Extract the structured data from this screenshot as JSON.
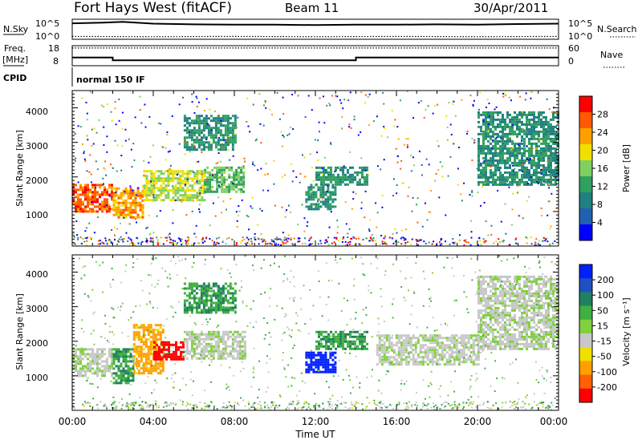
{
  "header": {
    "title": "Fort Hays West (fitACF)",
    "beam": "Beam 11",
    "date": "30/Apr/2011"
  },
  "top_panels": {
    "nsky_label": "N.Sky",
    "nsearch_label": "N.Search",
    "noise_ticks_left": [
      "10^5",
      "10^0"
    ],
    "noise_ticks_right": [
      "10^5",
      "10^0"
    ],
    "freq_label_1": "Freq.",
    "freq_label_2": "[MHz]",
    "freq_ticks": [
      "18",
      "8"
    ],
    "nave_label": "Nave",
    "nave_ticks": [
      "60",
      "0"
    ],
    "cpid_label": "CPID",
    "cpid_value": "normal 150 IF"
  },
  "chart_data": [
    {
      "type": "line",
      "title": "",
      "series": [
        {
          "name": "N.Sky",
          "x": [
            0,
            1.5,
            2.5,
            4,
            6,
            8,
            10,
            12,
            14,
            16,
            18,
            20,
            22,
            24
          ],
          "y": [
            4.3,
            4.5,
            4.7,
            4.2,
            4.0,
            3.9,
            3.9,
            3.8,
            3.9,
            3.9,
            4.0,
            3.9,
            4.1,
            4.2
          ]
        },
        {
          "name": "N.Search",
          "x": [
            0,
            4,
            8,
            12,
            16,
            20,
            24
          ],
          "y": [
            0.6,
            0.5,
            0.6,
            0.5,
            0.6,
            0.5,
            0.6
          ]
        }
      ],
      "xlim": [
        0,
        24
      ]
    },
    {
      "type": "line",
      "series": [
        {
          "name": "Freq.",
          "x": [
            0,
            2,
            2,
            14,
            14,
            24
          ],
          "y": [
            12,
            12,
            10.5,
            10.5,
            12,
            12
          ]
        },
        {
          "name": "Nave",
          "x": [
            0,
            24
          ],
          "y": [
            55,
            55
          ]
        }
      ],
      "ylim_left": [
        8,
        18
      ],
      "ylim_right": [
        0,
        60
      ],
      "xlim": [
        0,
        24
      ]
    },
    {
      "type": "heatmap",
      "ylabel": "Slant Range [km]",
      "xlim": [
        0,
        24
      ],
      "ylim": [
        0,
        4500
      ],
      "y_ticks": [
        "1000",
        "2000",
        "3000",
        "4000"
      ],
      "colorbar": {
        "label": "Power [dB]",
        "ticks": [
          "28",
          "24",
          "20",
          "16",
          "12",
          "8",
          "4"
        ],
        "colors": [
          "#ff0000",
          "#ff5a00",
          "#ffa000",
          "#f0e000",
          "#80d060",
          "#30a060",
          "#208080",
          "#2060b0",
          "#0000ff"
        ]
      },
      "echo_regions": [
        {
          "t0": 0.0,
          "t1": 2.0,
          "r0": 1000,
          "r1": 1800,
          "value": 26
        },
        {
          "t0": 2.0,
          "t1": 3.5,
          "r0": 800,
          "r1": 1700,
          "value": 22
        },
        {
          "t0": 3.5,
          "t1": 6.5,
          "r0": 1300,
          "r1": 2200,
          "value": 16
        },
        {
          "t0": 6.5,
          "t1": 8.5,
          "r0": 1600,
          "r1": 2300,
          "value": 12
        },
        {
          "t0": 5.5,
          "t1": 8.0,
          "r0": 2800,
          "r1": 3800,
          "value": 8
        },
        {
          "t0": 11.5,
          "t1": 13.0,
          "r0": 1100,
          "r1": 1800,
          "value": 8
        },
        {
          "t0": 12.0,
          "t1": 14.5,
          "r0": 1800,
          "r1": 2300,
          "value": 8
        },
        {
          "t0": 20.0,
          "t1": 24.0,
          "r0": 1800,
          "r1": 3900,
          "value": 8
        }
      ]
    },
    {
      "type": "heatmap",
      "ylabel": "Slant Range [km]",
      "xlabel": "Time UT",
      "xlim": [
        0,
        24
      ],
      "ylim": [
        0,
        4500
      ],
      "x_ticks": [
        "00:00",
        "04:00",
        "08:00",
        "12:00",
        "16:00",
        "20:00",
        "00:00"
      ],
      "y_ticks": [
        "1000",
        "2000",
        "3000",
        "4000"
      ],
      "colorbar": {
        "label": "Velocity [m s⁻¹]",
        "ticks": [
          "200",
          "100",
          "50",
          "15",
          "-15",
          "-50",
          "-100",
          "-200"
        ],
        "colors": [
          "#0020ff",
          "#2050c0",
          "#208060",
          "#40b040",
          "#80d040",
          "#c8c8c8",
          "#f0e000",
          "#ffa000",
          "#ff6000",
          "#ff0000"
        ]
      },
      "echo_regions": [
        {
          "t0": 0.0,
          "t1": 2.0,
          "r0": 1000,
          "r1": 1800,
          "value": 0
        },
        {
          "t0": 2.0,
          "t1": 3.0,
          "r0": 800,
          "r1": 1800,
          "value": 30
        },
        {
          "t0": 3.0,
          "t1": 4.5,
          "r0": 1100,
          "r1": 2500,
          "value": -60
        },
        {
          "t0": 4.0,
          "t1": 5.5,
          "r0": 1500,
          "r1": 2000,
          "value": -220
        },
        {
          "t0": 5.5,
          "t1": 8.5,
          "r0": 1500,
          "r1": 2300,
          "value": 0
        },
        {
          "t0": 5.5,
          "t1": 8.0,
          "r0": 2800,
          "r1": 3700,
          "value": 30
        },
        {
          "t0": 11.5,
          "t1": 13.0,
          "r0": 1100,
          "r1": 1700,
          "value": 220
        },
        {
          "t0": 12.0,
          "t1": 14.5,
          "r0": 1800,
          "r1": 2300,
          "value": 30
        },
        {
          "t0": 15.0,
          "t1": 20.0,
          "r0": 1300,
          "r1": 2200,
          "value": 0
        },
        {
          "t0": 20.0,
          "t1": 24.0,
          "r0": 1800,
          "r1": 3900,
          "value": 0
        }
      ]
    }
  ]
}
